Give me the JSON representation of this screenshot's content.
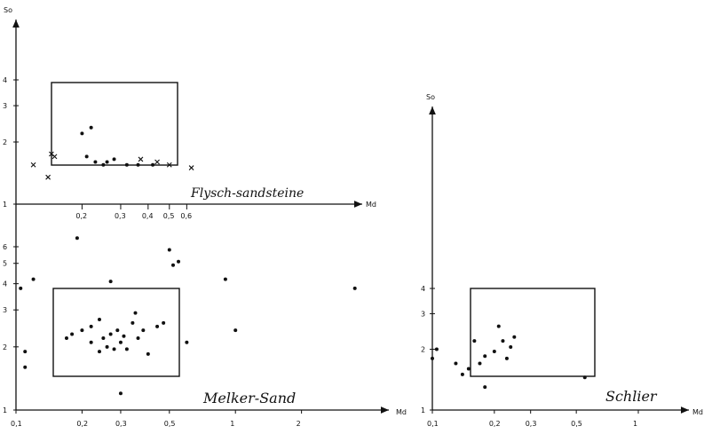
{
  "chart_data": [
    {
      "type": "scatter",
      "panel": "left",
      "x_axis_label": "Md",
      "y_axis_label": "So",
      "x_scale": "log",
      "y_scale": "log",
      "x_tick_labels": [
        "0,1",
        "0,2",
        "0,3",
        "0,5",
        "1",
        "2"
      ],
      "y_tick_labels_lower": [
        "1",
        "2",
        "3",
        "4",
        "5",
        "6"
      ],
      "y_tick_labels_upper": [
        "1",
        "2",
        "3",
        "4"
      ],
      "upper_axis_tick_labels": [
        "0,2",
        "0,3",
        "0,4",
        "0,5",
        "0,6"
      ],
      "annotations": [
        "Flysch-sandsteine",
        "Melker-Sand"
      ],
      "groups": [
        {
          "annotation": "Flysch-sandsteine",
          "box": {
            "x": [
              0.14,
              0.6
            ],
            "y": [
              1.4,
              4
            ]
          },
          "dot_points": [
            [
              0.2,
              2.2
            ],
            [
              0.22,
              2.35
            ],
            [
              0.21,
              1.7
            ],
            [
              0.23,
              1.6
            ],
            [
              0.25,
              1.55
            ],
            [
              0.26,
              1.6
            ],
            [
              0.28,
              1.65
            ],
            [
              0.32,
              1.55
            ],
            [
              0.36,
              1.55
            ],
            [
              0.42,
              1.55
            ]
          ],
          "cross_points": [
            [
              0.12,
              1.55
            ],
            [
              0.145,
              1.75
            ],
            [
              0.15,
              1.7
            ],
            [
              0.37,
              1.65
            ],
            [
              0.44,
              1.6
            ],
            [
              0.5,
              1.55
            ],
            [
              0.63,
              1.5
            ],
            [
              0.14,
              1.35
            ]
          ]
        },
        {
          "annotation": "Melker-Sand",
          "box": {
            "x": [
              0.14,
              0.6
            ],
            "y": [
              1.4,
              4
            ]
          },
          "dot_points": [
            [
              0.105,
              3.8
            ],
            [
              0.11,
              1.9
            ],
            [
              0.11,
              1.6
            ],
            [
              0.12,
              4.2
            ],
            [
              0.19,
              6.6
            ],
            [
              0.5,
              5.8
            ],
            [
              0.55,
              5.1
            ],
            [
              0.52,
              4.9
            ],
            [
              0.9,
              4.2
            ],
            [
              1.0,
              2.4
            ],
            [
              3.5,
              3.8
            ],
            [
              0.27,
              4.1
            ],
            [
              0.17,
              2.2
            ],
            [
              0.18,
              2.3
            ],
            [
              0.2,
              2.4
            ],
            [
              0.22,
              2.5
            ],
            [
              0.22,
              2.1
            ],
            [
              0.24,
              2.7
            ],
            [
              0.24,
              1.9
            ],
            [
              0.25,
              2.2
            ],
            [
              0.26,
              2.0
            ],
            [
              0.27,
              2.3
            ],
            [
              0.28,
              1.95
            ],
            [
              0.29,
              2.4
            ],
            [
              0.3,
              2.1
            ],
            [
              0.31,
              2.25
            ],
            [
              0.32,
              1.95
            ],
            [
              0.34,
              2.6
            ],
            [
              0.35,
              2.9
            ],
            [
              0.36,
              2.2
            ],
            [
              0.38,
              2.4
            ],
            [
              0.4,
              1.85
            ],
            [
              0.44,
              2.5
            ],
            [
              0.47,
              2.6
            ],
            [
              0.6,
              2.1
            ],
            [
              0.3,
              1.2
            ]
          ]
        }
      ]
    },
    {
      "type": "scatter",
      "panel": "right",
      "x_axis_label": "Md",
      "y_axis_label": "So",
      "x_scale": "log",
      "y_scale": "log",
      "x_tick_labels": [
        "0,1",
        "0,2",
        "0,3",
        "0,5",
        "1"
      ],
      "y_tick_labels": [
        "1",
        "2",
        "3",
        "4"
      ],
      "annotations": [
        "Schlier"
      ],
      "box": {
        "x": [
          0.14,
          0.6
        ],
        "y": [
          1.4,
          4
        ]
      },
      "dot_points": [
        [
          0.1,
          1.8
        ],
        [
          0.105,
          2.0
        ],
        [
          0.13,
          1.7
        ],
        [
          0.14,
          1.5
        ],
        [
          0.15,
          1.6
        ],
        [
          0.16,
          2.2
        ],
        [
          0.17,
          1.7
        ],
        [
          0.18,
          1.85
        ],
        [
          0.2,
          1.95
        ],
        [
          0.21,
          2.6
        ],
        [
          0.22,
          2.2
        ],
        [
          0.23,
          1.8
        ],
        [
          0.24,
          2.05
        ],
        [
          0.25,
          2.3
        ],
        [
          0.55,
          1.45
        ],
        [
          0.18,
          1.3
        ]
      ]
    }
  ]
}
